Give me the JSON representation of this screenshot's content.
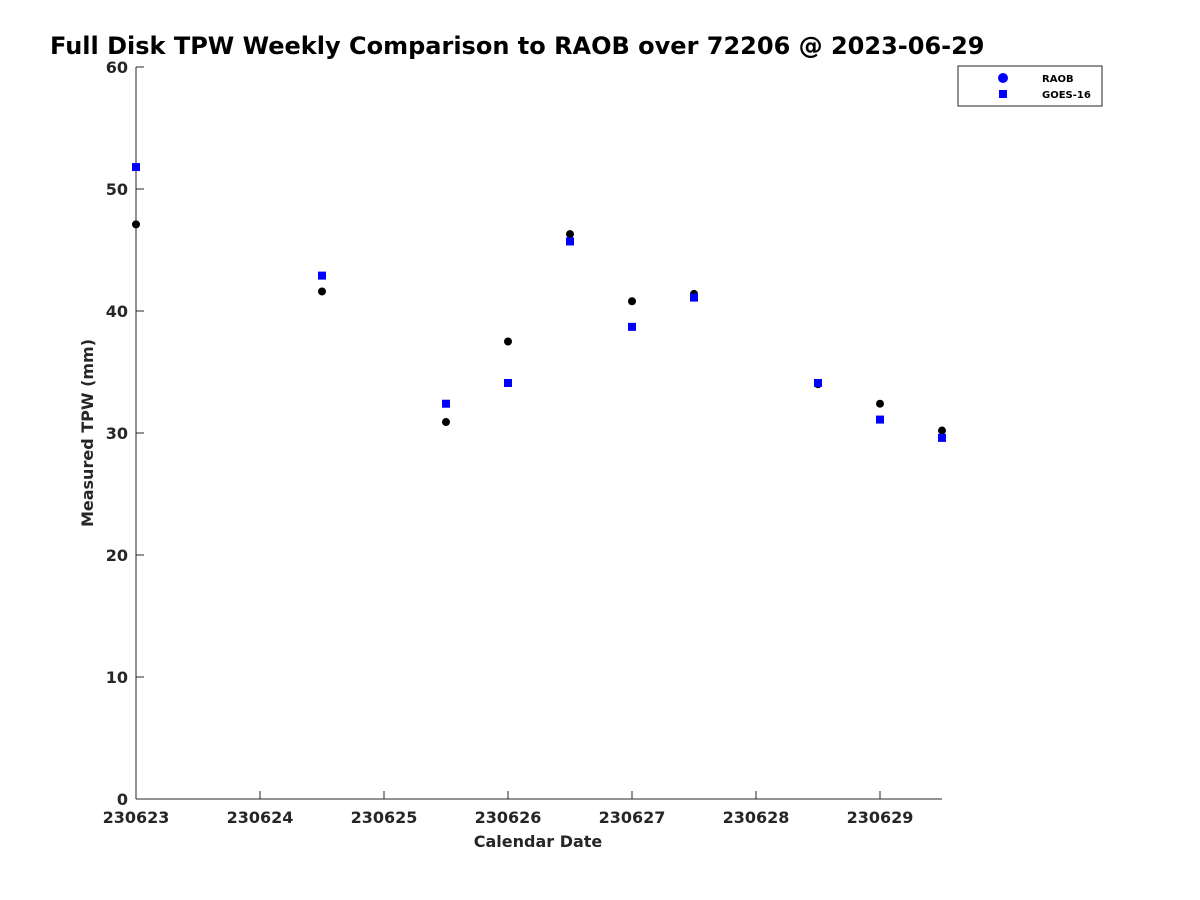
{
  "chart_data": {
    "type": "scatter",
    "title": "Full Disk TPW Weekly Comparison to RAOB over 72206 @ 2023-06-29",
    "xlabel": "Calendar Date",
    "ylabel": "Measured TPW (mm)",
    "ylim": [
      0,
      60
    ],
    "xlim": [
      "2023-06-23 00:00",
      "2023-06-29 12:00"
    ],
    "x_ticks": [
      "230623",
      "230624",
      "230625",
      "230626",
      "230627",
      "230628",
      "230629"
    ],
    "y_ticks": [
      "0",
      "10",
      "20",
      "30",
      "40",
      "50",
      "60"
    ],
    "grid": false,
    "legend_position": "top-right",
    "x": [
      "2023-06-23 00:00",
      "2023-06-24 12:00",
      "2023-06-25 12:00",
      "2023-06-26 00:00",
      "2023-06-26 12:00",
      "2023-06-27 00:00",
      "2023-06-27 12:00",
      "2023-06-28 12:00",
      "2023-06-29 00:00",
      "2023-06-29 12:00"
    ],
    "series": [
      {
        "name": "RAOB",
        "marker": "circle",
        "color": "#000000",
        "legend_color": "#0000ff",
        "values": [
          47.1,
          41.6,
          30.9,
          37.5,
          46.3,
          40.8,
          41.4,
          34.0,
          32.4,
          30.2
        ]
      },
      {
        "name": "GOES-16",
        "marker": "square",
        "color": "#0000ff",
        "legend_color": "#0000ff",
        "values": [
          51.8,
          42.9,
          32.4,
          34.1,
          45.7,
          38.7,
          41.1,
          34.1,
          31.1,
          29.6
        ]
      }
    ]
  }
}
